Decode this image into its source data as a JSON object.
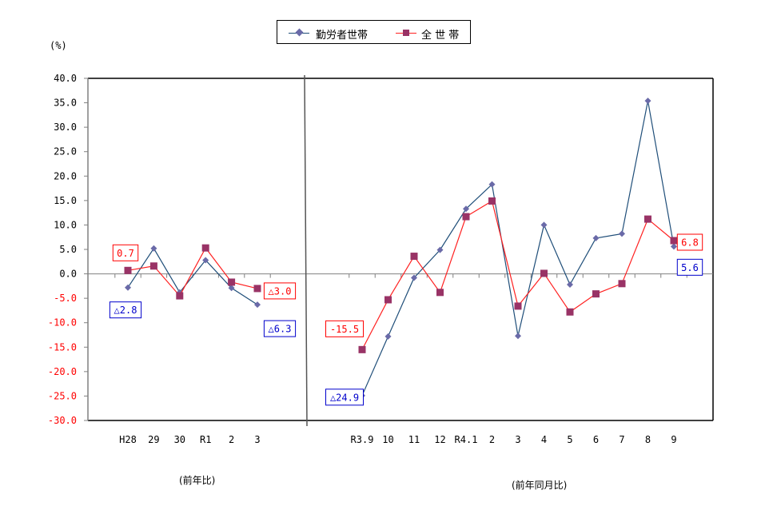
{
  "legend": {
    "series_1_label": "勤労者世帯",
    "series_2_label": "全 世 帯"
  },
  "axis": {
    "unit_label": "(%)",
    "left_section_label": "(前年比)",
    "right_section_label": "(前年同月比)"
  },
  "colors": {
    "series_1_line": "#1f4e79",
    "series_1_marker": "#6a6aa8",
    "series_2_line": "#ff2020",
    "series_2_marker": "#993366",
    "negative_tick": "#ff0000",
    "positive_tick": "#000000",
    "axis": "#808080"
  },
  "chart_data": {
    "type": "line",
    "title": "",
    "xlabel": "",
    "ylabel": "(%)",
    "ylim": [
      -30,
      40
    ],
    "ytick_step": 5,
    "yticks": [
      "40.0",
      "35.0",
      "30.0",
      "25.0",
      "20.0",
      "15.0",
      "10.0",
      "5.0",
      "0.0",
      "-5.0",
      "-10.0",
      "-15.0",
      "-20.0",
      "-25.0",
      "-30.0"
    ],
    "grid": false,
    "legend_position": "top",
    "panels": [
      {
        "name": "前年比",
        "categories": [
          "H28",
          "29",
          "30",
          "R1",
          "2",
          "3"
        ],
        "series": [
          {
            "name": "勤労者世帯",
            "values": [
              -2.8,
              5.2,
              -3.8,
              2.8,
              -2.9,
              -6.3
            ]
          },
          {
            "name": "全 世 帯",
            "values": [
              0.7,
              1.6,
              -4.5,
              5.3,
              -1.7,
              -3.0
            ]
          }
        ]
      },
      {
        "name": "前年同月比",
        "categories": [
          "R3.9",
          "10",
          "11",
          "12",
          "R4.1",
          "2",
          "3",
          "4",
          "5",
          "6",
          "7",
          "8",
          "9"
        ],
        "series": [
          {
            "name": "勤労者世帯",
            "values": [
              -24.9,
              -12.8,
              -0.8,
              4.9,
              13.3,
              18.3,
              -12.7,
              10.0,
              -2.2,
              7.3,
              8.2,
              35.4,
              5.6
            ]
          },
          {
            "name": "全 世 帯",
            "values": [
              -15.5,
              -5.3,
              3.6,
              -3.8,
              11.7,
              14.9,
              -6.6,
              0.1,
              -7.8,
              -4.1,
              -2.0,
              11.2,
              6.8
            ]
          }
        ]
      }
    ],
    "annotations": [
      {
        "panel": 0,
        "series": "全 世 帯",
        "index": 0,
        "text": "0.7",
        "color": "#ff0000"
      },
      {
        "panel": 0,
        "series": "勤労者世帯",
        "index": 0,
        "text": "△2.8",
        "color": "#0000cc"
      },
      {
        "panel": 0,
        "series": "全 世 帯",
        "index": 5,
        "text": "△3.0",
        "color": "#ff0000"
      },
      {
        "panel": 0,
        "series": "勤労者世帯",
        "index": 5,
        "text": "△6.3",
        "color": "#0000cc"
      },
      {
        "panel": 1,
        "series": "全 世 帯",
        "index": 0,
        "text": "-15.5",
        "color": "#ff0000"
      },
      {
        "panel": 1,
        "series": "勤労者世帯",
        "index": 0,
        "text": "△24.9",
        "color": "#0000cc"
      },
      {
        "panel": 1,
        "series": "全 世 帯",
        "index": 12,
        "text": "6.8",
        "color": "#ff0000"
      },
      {
        "panel": 1,
        "series": "勤労者世帯",
        "index": 12,
        "text": "5.6",
        "color": "#0000cc"
      }
    ]
  }
}
